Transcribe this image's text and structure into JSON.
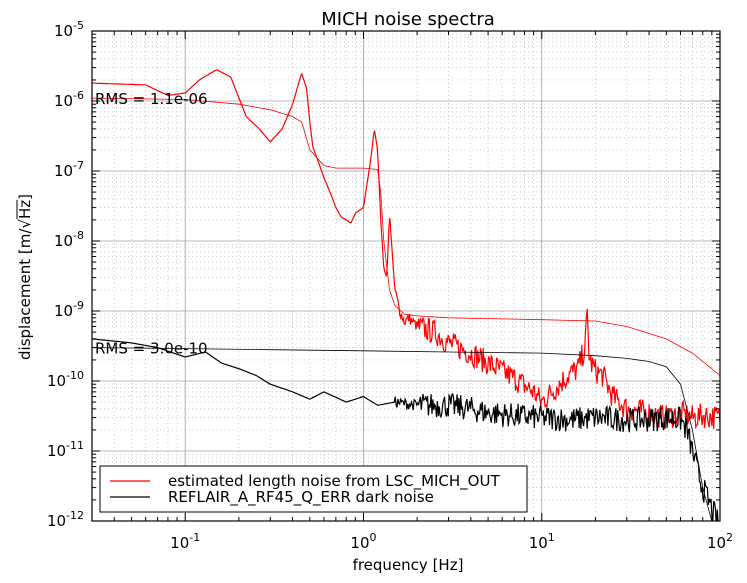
{
  "chart_data": {
    "type": "line",
    "title": "MICH noise spectra",
    "xlabel": "frequency [Hz]",
    "ylabel_prefix": "displacement [m/",
    "ylabel_radicand": "Hz",
    "ylabel_suffix": "]",
    "xscale": "log",
    "yscale": "log",
    "xlim": [
      0.03,
      100
    ],
    "ylim": [
      1e-12,
      1e-05
    ],
    "grid": true,
    "x_tick_labels": [
      {
        "base": "10",
        "exp": "-1",
        "value": 0.1
      },
      {
        "base": "10",
        "exp": "0",
        "value": 1
      },
      {
        "base": "10",
        "exp": "1",
        "value": 10
      },
      {
        "base": "10",
        "exp": "2",
        "value": 100
      }
    ],
    "y_tick_labels": [
      {
        "base": "10",
        "exp": "-12",
        "value": 1e-12
      },
      {
        "base": "10",
        "exp": "-11",
        "value": 1e-11
      },
      {
        "base": "10",
        "exp": "-10",
        "value": 1e-10
      },
      {
        "base": "10",
        "exp": "-9",
        "value": 1e-09
      },
      {
        "base": "10",
        "exp": "-8",
        "value": 1e-08
      },
      {
        "base": "10",
        "exp": "-7",
        "value": 1e-07
      },
      {
        "base": "10",
        "exp": "-6",
        "value": 1e-06
      },
      {
        "base": "10",
        "exp": "-5",
        "value": 1e-05
      }
    ],
    "legend_position": "bottom-left",
    "annotations": [
      {
        "text": "RMS = 1.1e-06",
        "x": 0.03,
        "y": 1.1e-06
      },
      {
        "text": "RMS = 3.0e-10",
        "x": 0.03,
        "y": 3e-10
      }
    ],
    "series": [
      {
        "name": "estimated length noise from LSC_MICH_OUT",
        "color": "#ff0000",
        "x": [
          0.03,
          0.06,
          0.08,
          0.1,
          0.12,
          0.15,
          0.18,
          0.22,
          0.26,
          0.3,
          0.35,
          0.4,
          0.45,
          0.48,
          0.5,
          0.52,
          0.55,
          0.6,
          0.65,
          0.7,
          0.75,
          0.8,
          0.85,
          0.9,
          1.0,
          1.1,
          1.15,
          1.2,
          1.25,
          1.3,
          1.35,
          1.4,
          1.5,
          1.6,
          1.7,
          1.8,
          2.0,
          2.5,
          3,
          4,
          5,
          7,
          9,
          10,
          12,
          14,
          16,
          17.5,
          18,
          18.5,
          20,
          22,
          25,
          30,
          40,
          50,
          60,
          70,
          80,
          100
        ],
        "y": [
          1.8e-06,
          1.7e-06,
          1.2e-06,
          1.3e-06,
          2e-06,
          2.8e-06,
          2.2e-06,
          6e-07,
          4e-07,
          2.6e-07,
          4e-07,
          9e-07,
          2.5e-06,
          1.5e-06,
          5e-07,
          2.2e-07,
          1.5e-07,
          8e-08,
          5e-08,
          3e-08,
          2.2e-08,
          2e-08,
          1.8e-08,
          2.5e-08,
          3e-08,
          1.5e-07,
          4e-07,
          2e-07,
          2e-08,
          4e-09,
          3e-09,
          2.5e-08,
          2e-09,
          1e-09,
          7e-10,
          8e-10,
          6e-10,
          5e-10,
          3.5e-10,
          2.5e-10,
          1.8e-10,
          1.1e-10,
          7e-11,
          5e-11,
          8e-11,
          1.2e-10,
          1.5e-10,
          3e-10,
          9e-10,
          2e-10,
          1.4e-10,
          1.2e-10,
          6e-11,
          4e-11,
          3.5e-11,
          3e-11,
          3.5e-11,
          3e-11,
          3.2e-11,
          3e-11
        ]
      },
      {
        "name": "",
        "color": "#ff0000",
        "x": [
          0.03,
          0.1,
          0.2,
          0.3,
          0.4,
          0.45,
          0.5,
          0.6,
          0.7,
          0.8,
          1.0,
          1.2,
          1.25,
          1.3,
          1.4,
          1.5,
          1.7,
          2,
          3,
          5,
          10,
          20,
          30,
          50,
          70,
          100
        ],
        "y": [
          1.1e-06,
          1.05e-06,
          9e-07,
          7.5e-07,
          6e-07,
          5e-07,
          2e-07,
          1.2e-07,
          1.1e-07,
          1.1e-07,
          1.1e-07,
          1.05e-07,
          5e-08,
          1e-08,
          2e-09,
          1.2e-09,
          9e-10,
          8.5e-10,
          8e-10,
          7.8e-10,
          7.5e-10,
          7.2e-10,
          6e-10,
          4e-10,
          2.5e-10,
          1.2e-10
        ]
      },
      {
        "name": "REFLAIR_A_RF45_Q_ERR dark noise",
        "color": "#000000",
        "x": [
          0.03,
          0.05,
          0.07,
          0.1,
          0.13,
          0.16,
          0.2,
          0.25,
          0.3,
          0.4,
          0.5,
          0.6,
          0.8,
          1.0,
          1.2,
          1.5,
          2,
          3,
          4,
          5,
          7,
          10,
          15,
          20,
          30,
          40,
          50,
          60,
          65,
          70,
          75,
          80,
          90,
          100
        ],
        "y": [
          4e-10,
          3.5e-10,
          3e-10,
          2.2e-10,
          2.6e-10,
          1.8e-10,
          1.5e-10,
          1.2e-10,
          9e-11,
          7e-11,
          5.5e-11,
          7e-11,
          5e-11,
          6e-11,
          4.5e-11,
          5e-11,
          4.5e-11,
          4.5e-11,
          4e-11,
          3.5e-11,
          3.2e-11,
          3e-11,
          2.8e-11,
          3e-11,
          2.8e-11,
          2.8e-11,
          3e-11,
          2.8e-11,
          2e-11,
          1e-11,
          5e-12,
          3e-12,
          1.5e-12,
          8e-13
        ]
      },
      {
        "name": "",
        "color": "#000000",
        "x": [
          0.03,
          0.1,
          0.3,
          1,
          3,
          10,
          20,
          30,
          40,
          50,
          60,
          70,
          80,
          90,
          100
        ],
        "y": [
          3e-10,
          2.9e-10,
          2.8e-10,
          2.7e-10,
          2.6e-10,
          2.5e-10,
          2.3e-10,
          2.1e-10,
          1.9e-10,
          1.6e-10,
          9e-11,
          2e-11,
          3e-12,
          1e-12,
          8e-13
        ]
      }
    ]
  }
}
